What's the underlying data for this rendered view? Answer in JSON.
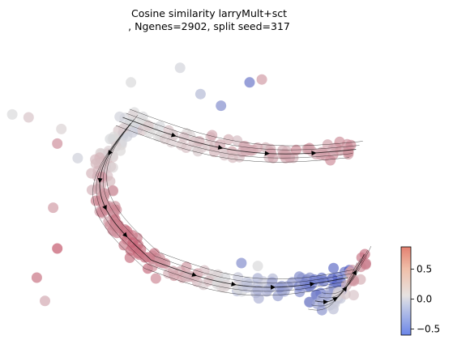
{
  "chart_data": {
    "type": "scatter",
    "subtype": "velocity-embedding-stream",
    "title_lines": [
      "Cosine similarity larryMult+sct",
      ", Ngenes=2902, split seed=317"
    ],
    "xlabel": "",
    "ylabel": "",
    "axes_visible": false,
    "grid": false,
    "colormap": "coolwarm",
    "color_low": "#3b4cc0",
    "color_mid": "#dddddd",
    "color_high": "#b40426",
    "colorbar": {
      "placement": "right-bottom",
      "range": [
        -0.6,
        0.87
      ],
      "ticks": [
        0.5,
        0.0,
        -0.5
      ],
      "tick_labels": [
        "0.5",
        "0.0",
        "−0.5"
      ]
    },
    "x_range": [
      0,
      100
    ],
    "y_range": [
      0,
      100
    ],
    "branches": [
      {
        "name": "",
        "start": [
          29,
          75
        ],
        "end": [
          86,
          64
        ],
        "c_start": 0.05,
        "c_end": 0.35,
        "n": 90
      },
      {
        "name": "",
        "start": [
          31,
          73
        ],
        "end": [
          36,
          26
        ],
        "c_start": 0.02,
        "c_end": 0.5,
        "n": 110
      },
      {
        "name": "",
        "start": [
          36,
          26
        ],
        "end": [
          84,
          20
        ],
        "c_start": 0.4,
        "c_end": -0.5,
        "n": 90
      },
      {
        "name": "",
        "start": [
          76,
          12
        ],
        "end": [
          88,
          28
        ],
        "c_start": -0.35,
        "c_end": 0.45,
        "n": 35
      }
    ],
    "outliers": [
      {
        "x": 2,
        "y": 76,
        "c": 0.05
      },
      {
        "x": 6,
        "y": 75,
        "c": 0.15
      },
      {
        "x": 14,
        "y": 71,
        "c": 0.1
      },
      {
        "x": 13,
        "y": 66,
        "c": 0.35
      },
      {
        "x": 18,
        "y": 61,
        "c": 0.0
      },
      {
        "x": 12,
        "y": 44,
        "c": 0.3
      },
      {
        "x": 13,
        "y": 30,
        "c": 0.55
      },
      {
        "x": 8,
        "y": 20,
        "c": 0.45
      },
      {
        "x": 10,
        "y": 12,
        "c": 0.25
      },
      {
        "x": 31,
        "y": 87,
        "c": 0.05
      },
      {
        "x": 43,
        "y": 92,
        "c": 0.02
      },
      {
        "x": 48,
        "y": 83,
        "c": -0.1
      },
      {
        "x": 53,
        "y": 79,
        "c": -0.3
      },
      {
        "x": 60,
        "y": 87,
        "c": -0.4
      },
      {
        "x": 63,
        "y": 88,
        "c": 0.3
      },
      {
        "x": 58,
        "y": 25,
        "c": -0.3
      },
      {
        "x": 62,
        "y": 24,
        "c": 0.05
      }
    ]
  }
}
